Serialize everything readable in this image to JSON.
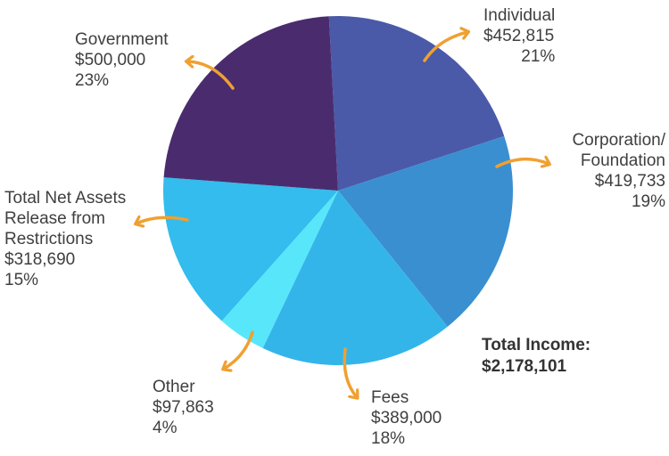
{
  "chart_data": {
    "type": "pie",
    "slices": [
      {
        "name_lines": [
          "Individual"
        ],
        "value": 452815,
        "value_label": "$452,815",
        "percent_label": "21%",
        "color": "#4a5aa8"
      },
      {
        "name_lines": [
          "Corporation/",
          "Foundation"
        ],
        "value": 419733,
        "value_label": "$419,733",
        "percent_label": "19%",
        "color": "#3a8fd0"
      },
      {
        "name_lines": [
          "Fees"
        ],
        "value": 389000,
        "value_label": "$389,000",
        "percent_label": "18%",
        "color": "#34b5ea"
      },
      {
        "name_lines": [
          "Other"
        ],
        "value": 97863,
        "value_label": "$97,863",
        "percent_label": "4%",
        "color": "#58e6fb"
      },
      {
        "name_lines": [
          "Total Net Assets",
          "Release from",
          "Restrictions"
        ],
        "value": 318690,
        "value_label": "$318,690",
        "percent_label": "15%",
        "color": "#33bced"
      },
      {
        "name_lines": [
          "Government"
        ],
        "value": 500000,
        "value_label": "$500,000",
        "percent_label": "23%",
        "color": "#4a2c6e"
      }
    ],
    "total_label": "Total Income:",
    "total_value": "$2,178,101",
    "arrow_color": "#f0a030"
  }
}
